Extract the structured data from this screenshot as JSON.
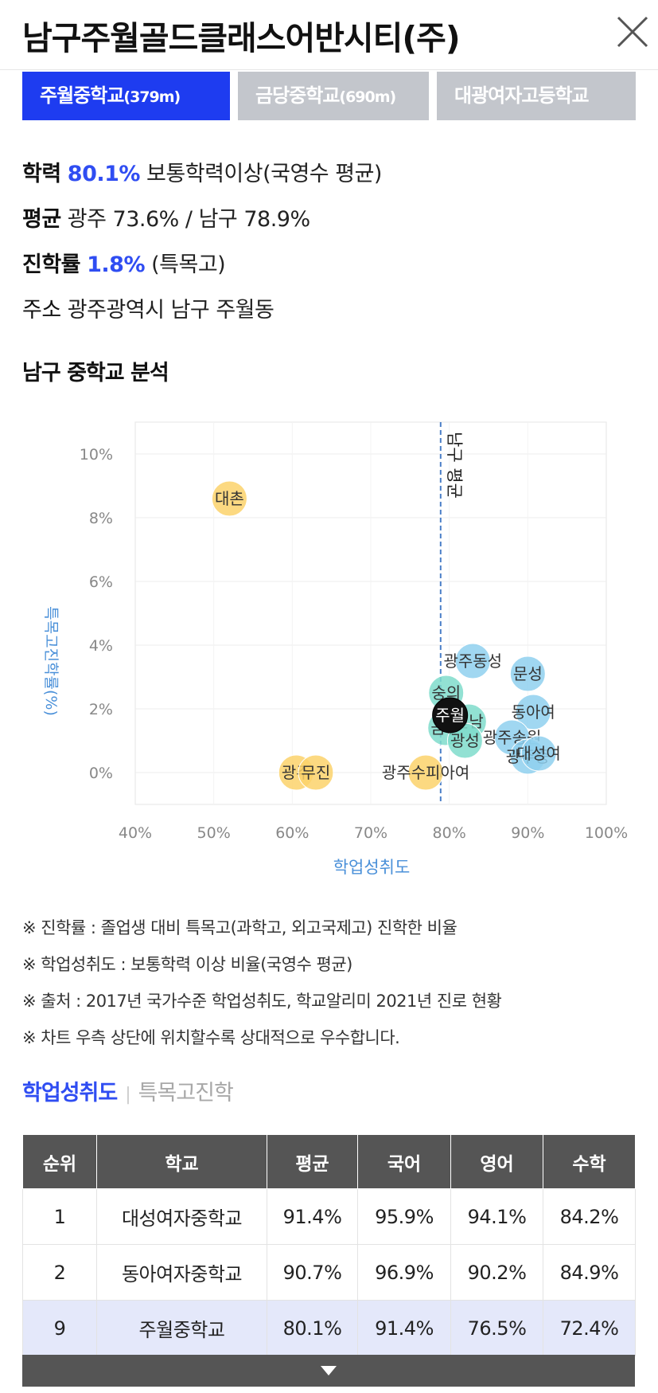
{
  "header": {
    "title": "남구주월골드클래스어반시티(주)",
    "close_icon": "close-icon"
  },
  "school_tabs": [
    {
      "name": "주월중학교",
      "distance": "(379m)",
      "active": true
    },
    {
      "name": "금당중학교",
      "distance": "(690m)",
      "active": false
    },
    {
      "name": "대광여자고등학교",
      "distance": "",
      "active": false
    }
  ],
  "info": {
    "achievement": {
      "label": "학력",
      "value": "80.1%",
      "desc": "보통학력이상(국영수 평균)"
    },
    "average": {
      "label": "평균",
      "desc": "광주 73.6% / 남구 78.9%"
    },
    "advancement": {
      "label": "진학률",
      "value": "1.8%",
      "desc": "(특목고)"
    },
    "address": {
      "label": "주소",
      "desc": "광주광역시 남구 주월동"
    }
  },
  "analysis_title": "남구 중학교 분석",
  "chart_data": {
    "type": "scatter",
    "xlabel": "학업성취도",
    "ylabel": "특목고진학률(%)",
    "xlim": [
      40,
      100
    ],
    "ylim": [
      -1,
      11
    ],
    "x_ticks": [
      "40%",
      "50%",
      "60%",
      "70%",
      "80%",
      "90%",
      "100%"
    ],
    "y_ticks": [
      "0%",
      "2%",
      "4%",
      "6%",
      "8%",
      "10%"
    ],
    "reference_line": {
      "x": 78.9,
      "label": "남구 평균"
    },
    "colors": {
      "yellow": "#fbd26b",
      "blue": "#8fd0ef",
      "teal": "#7fdccb",
      "current": "#111111",
      "axis_label": "#4a90d9",
      "ref_line": "#4a7fc7"
    },
    "points": [
      {
        "label": "대촌",
        "x": 52,
        "y": 8.6,
        "group": "yellow"
      },
      {
        "label": "광주",
        "x": 60.5,
        "y": 0,
        "group": "yellow"
      },
      {
        "label": "무진",
        "x": 63,
        "y": 0,
        "group": "yellow"
      },
      {
        "label": "광주수피아여",
        "x": 77,
        "y": 0,
        "group": "yellow"
      },
      {
        "label": "숭의",
        "x": 79.6,
        "y": 2.5,
        "group": "teal"
      },
      {
        "label": "금당",
        "x": 79.5,
        "y": 1.4,
        "group": "teal"
      },
      {
        "label": "진남",
        "x": 82.5,
        "y": 1.6,
        "group": "teal"
      },
      {
        "label": "광성",
        "x": 82,
        "y": 1.0,
        "group": "teal"
      },
      {
        "label": "광주동성",
        "x": 83,
        "y": 3.5,
        "group": "blue"
      },
      {
        "label": "문성",
        "x": 90,
        "y": 3.1,
        "group": "blue"
      },
      {
        "label": "동아여",
        "x": 90.7,
        "y": 1.9,
        "group": "blue"
      },
      {
        "label": "광주송원",
        "x": 88,
        "y": 1.1,
        "group": "blue"
      },
      {
        "label": "광주중",
        "x": 90,
        "y": 0.5,
        "group": "blue"
      },
      {
        "label": "대성여",
        "x": 91.4,
        "y": 0.6,
        "group": "blue"
      },
      {
        "label": "주월",
        "x": 80.1,
        "y": 1.8,
        "group": "current"
      }
    ]
  },
  "notes": [
    "※ 진학률 : 졸업생 대비 특목고(과학고, 외고국제고) 진학한 비율",
    "※ 학업성취도 : 보통학력 이상 비율(국영수 평균)",
    "※ 출처 : 2017년 국가수준 학업성취도, 학교알리미 2021년 진로 현황",
    "※ 차트 우측 상단에 위치할수록 상대적으로 우수합니다."
  ],
  "subtabs": {
    "achievement": "학업성취도",
    "advancement": "특목고진학"
  },
  "table": {
    "headers": [
      "순위",
      "학교",
      "평균",
      "국어",
      "영어",
      "수학"
    ],
    "rows": [
      [
        "1",
        "대성여자중학교",
        "91.4%",
        "95.9%",
        "94.1%",
        "84.2%"
      ],
      [
        "2",
        "동아여자중학교",
        "90.7%",
        "96.9%",
        "90.2%",
        "84.9%"
      ],
      [
        "9",
        "주월중학교",
        "80.1%",
        "91.4%",
        "76.5%",
        "72.4%"
      ]
    ],
    "highlight_row": 2
  },
  "more_icon": "triangle-down-icon"
}
